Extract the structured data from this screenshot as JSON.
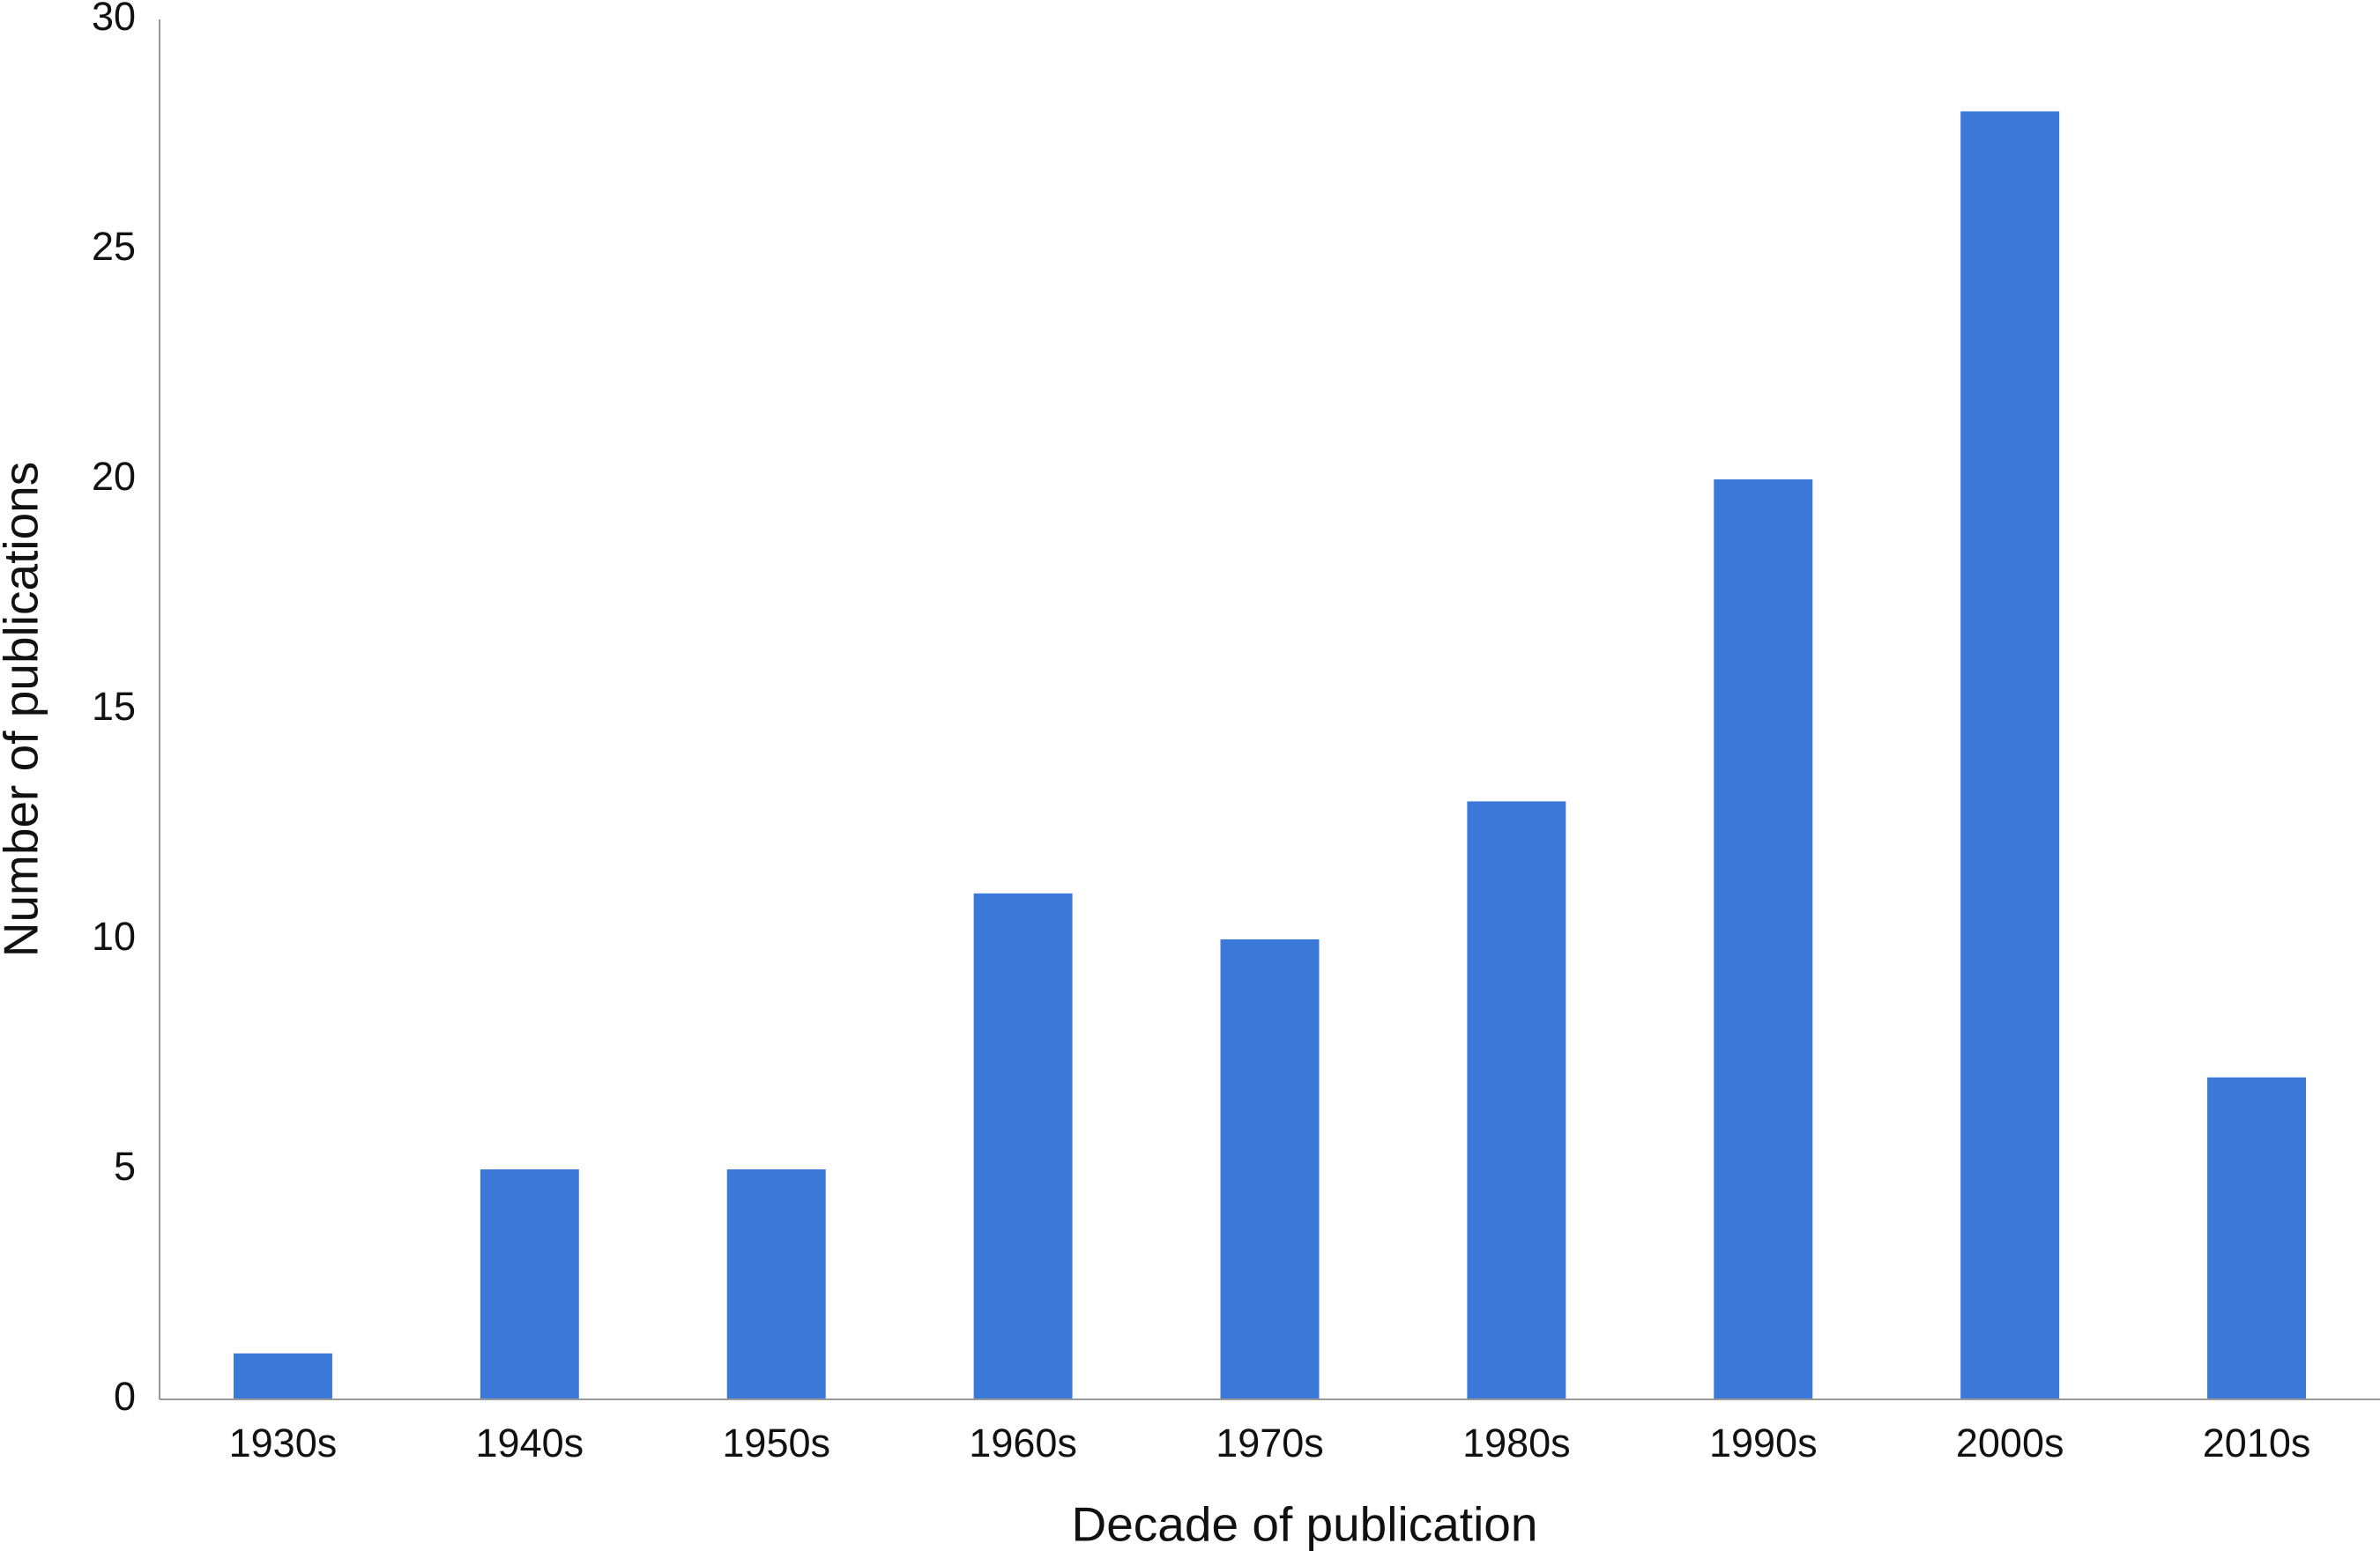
{
  "chart_data": {
    "type": "bar",
    "x_label": "Decade of publication",
    "y_label": "Number of publications",
    "categories": [
      "1930s",
      "1940s",
      "1950s",
      "1960s",
      "1970s",
      "1980s",
      "1990s",
      "2000s",
      "2010s"
    ],
    "values": [
      1,
      5,
      5,
      11,
      10,
      13,
      20,
      28,
      7
    ],
    "color": "#3c78d8",
    "ylim": [
      0,
      30
    ],
    "yticks": [
      0,
      5,
      10,
      15,
      20,
      25,
      30
    ],
    "grid": false
  }
}
